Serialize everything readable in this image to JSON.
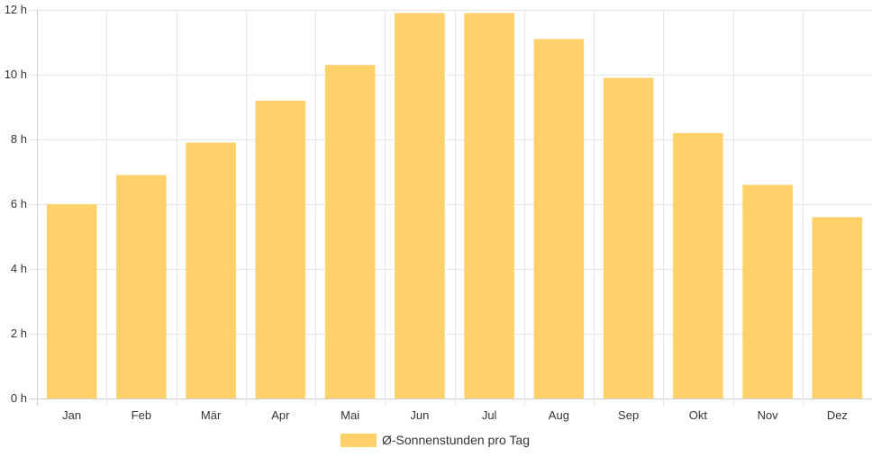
{
  "chart_data": {
    "type": "bar",
    "title": "",
    "xlabel": "",
    "ylabel": "",
    "categories": [
      "Jan",
      "Feb",
      "Mär",
      "Apr",
      "Mai",
      "Jun",
      "Jul",
      "Aug",
      "Sep",
      "Okt",
      "Nov",
      "Dez"
    ],
    "series": [
      {
        "name": "Ø-Sonnenstunden pro Tag",
        "values": [
          6.0,
          6.9,
          7.9,
          9.2,
          10.3,
          11.9,
          11.9,
          11.1,
          9.9,
          8.2,
          6.6,
          5.6
        ],
        "color": "#fed16a"
      }
    ],
    "ylim": [
      0,
      12
    ],
    "y_ticks": [
      0,
      2,
      4,
      6,
      8,
      10,
      12
    ],
    "y_tick_suffix": " h",
    "grid": true,
    "legend_position": "bottom"
  }
}
